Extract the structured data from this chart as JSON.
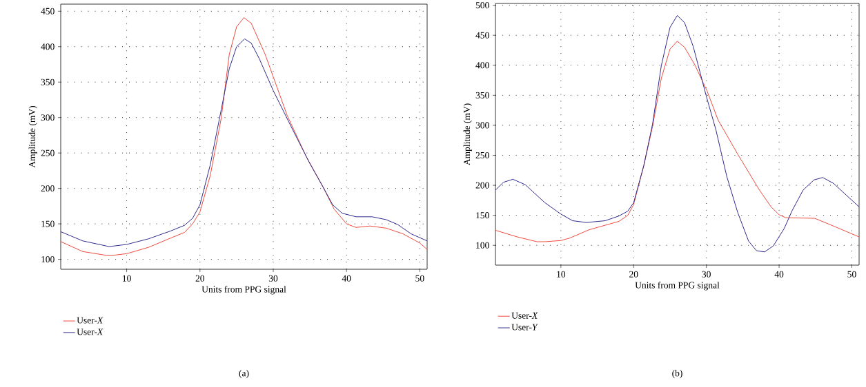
{
  "chart_data": [
    {
      "type": "line",
      "xlabel": "Units from PPG signal",
      "ylabel": "Amplitude (mV)",
      "xlim": [
        1,
        51
      ],
      "ylim": [
        86,
        460
      ],
      "xticks": [
        10,
        20,
        30,
        40,
        50
      ],
      "yticks": [
        100,
        150,
        200,
        250,
        300,
        350,
        400,
        450
      ],
      "grid": true,
      "legend": "bottom",
      "line_style": "solid",
      "marker": "none",
      "annotations": [
        "(a)"
      ],
      "series": [
        {
          "name": "User-*X*",
          "color": "#f04a3e",
          "x": [
            1,
            4,
            7.6,
            10,
            13,
            16,
            17.9,
            19,
            20,
            21.4,
            22.9,
            24,
            25,
            26,
            27,
            28.9,
            31.9,
            34.5,
            36.8,
            38.3,
            40,
            41.3,
            43.2,
            45.4,
            47.7,
            50,
            51
          ],
          "values": [
            125,
            111,
            105,
            108,
            117,
            130,
            138,
            150,
            167,
            218,
            299,
            389,
            428,
            441,
            433,
            389,
            303,
            245,
            202,
            171,
            150,
            145,
            147,
            144,
            136,
            123,
            114
          ]
        },
        {
          "name": "User-*X*",
          "color": "#2e2a8c",
          "x": [
            1,
            4,
            7.6,
            10,
            13,
            16,
            17.9,
            19,
            20,
            21.4,
            22.9,
            24,
            25,
            26.1,
            27,
            28.1,
            30,
            32.6,
            34.9,
            36.8,
            38.1,
            39.4,
            41.3,
            43.5,
            45.4,
            47,
            48.8,
            51
          ],
          "values": [
            139,
            126,
            118,
            121,
            129,
            140,
            148,
            158,
            177,
            233,
            311,
            369,
            400,
            411,
            405,
            383,
            338,
            284,
            237,
            202,
            177,
            165,
            160,
            160,
            156,
            149,
            136,
            126
          ]
        }
      ]
    },
    {
      "type": "line",
      "xlabel": "Units from PPG signal",
      "ylabel": "Amplitude (mV)",
      "xlim": [
        1,
        51
      ],
      "ylim": [
        67,
        503
      ],
      "xticks": [
        10,
        20,
        30,
        40,
        50
      ],
      "yticks": [
        100,
        150,
        200,
        250,
        300,
        350,
        400,
        450,
        500
      ],
      "grid": true,
      "legend": "bottom",
      "line_style": "solid",
      "marker": "none",
      "annotations": [
        "(b)"
      ],
      "series": [
        {
          "name": "User-*X*",
          "color": "#f04a3e",
          "x": [
            1,
            4,
            6.7,
            7.8,
            10,
            11.2,
            13.9,
            18,
            19.2,
            20,
            21.4,
            22.6,
            23.8,
            25,
            26,
            27,
            28.4,
            30.1,
            31.6,
            34.3,
            37.3,
            38.9,
            40,
            40.9,
            44.9,
            47.5,
            51
          ],
          "values": [
            125,
            114,
            106,
            106,
            108,
            112,
            126,
            140,
            150,
            168,
            233,
            298,
            378,
            427,
            440,
            430,
            401,
            357,
            309,
            252,
            192,
            164,
            151,
            146,
            145,
            132,
            114
          ]
        },
        {
          "name": "User-*Y*",
          "color": "#2e2a8c",
          "x": [
            1,
            2.1,
            3.4,
            5.1,
            7.8,
            10,
            11.6,
            13.5,
            16.1,
            18,
            19.2,
            20,
            21.4,
            22.6,
            23.8,
            25,
            26,
            27,
            28.2,
            30,
            31.3,
            32.8,
            34.3,
            35.8,
            36.9,
            38,
            39.2,
            40.7,
            41.8,
            43.3,
            44.8,
            46,
            47.5,
            51
          ],
          "values": [
            192,
            205,
            210,
            201,
            171,
            152,
            141,
            138,
            141,
            149,
            157,
            171,
            233,
            302,
            399,
            463,
            483,
            471,
            431,
            348,
            293,
            215,
            155,
            107,
            91,
            89,
            99,
            128,
            158,
            192,
            209,
            213,
            203,
            164
          ]
        }
      ]
    }
  ]
}
